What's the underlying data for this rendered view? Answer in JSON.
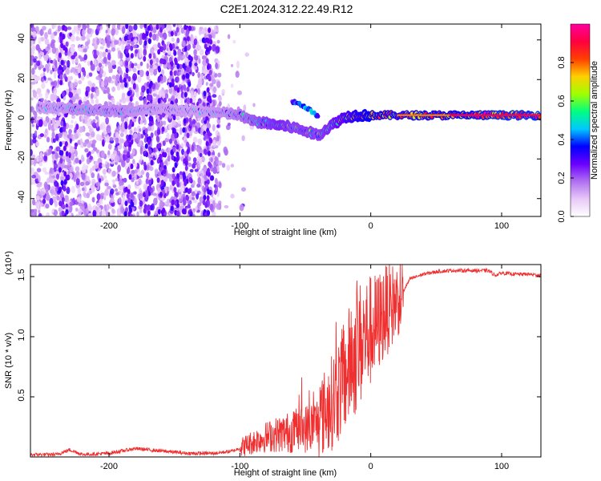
{
  "title": "C2E1.2024.312.22.49.R12",
  "chart_data": [
    {
      "type": "heatmap",
      "xlabel": "Height of straight line (km)",
      "ylabel": "Frequency (Hz)",
      "xlim": [
        -260,
        130
      ],
      "ylim": [
        -49,
        48
      ],
      "xticks": [
        -200,
        -100,
        0,
        100
      ],
      "yticks": [
        -40,
        -20,
        0,
        20,
        40
      ],
      "colorbar": {
        "label": "Normalized spectral amplitude",
        "range": [
          0,
          1
        ],
        "ticks": [
          0,
          0.2,
          0.4,
          0.6,
          0.8
        ],
        "tick_labels": [
          "0.0",
          "0.2",
          "0.4",
          "0.6",
          "0.8"
        ],
        "colors": [
          "#ffffff",
          "#e8c8f8",
          "#b070f0",
          "#6a00ff",
          "#0000ff",
          "#00c8ff",
          "#00ff80",
          "#a0ff00",
          "#ffd000",
          "#ff4000",
          "#ff0040",
          "#ff00a0"
        ]
      },
      "ridge": {
        "x": [
          -250,
          -220,
          -190,
          -160,
          -130,
          -110,
          -100,
          -90,
          -80,
          -70,
          -60,
          -50,
          -40,
          -30,
          -20,
          -10,
          0,
          20,
          60,
          100,
          130
        ],
        "freq": [
          6,
          5,
          4,
          5,
          4,
          3,
          2,
          -1,
          -2,
          -3,
          -4,
          -6,
          -8,
          -3,
          1,
          2,
          2,
          2,
          2,
          2,
          2
        ],
        "amplitude": [
          0.3,
          0.35,
          0.35,
          0.3,
          0.3,
          0.35,
          0.4,
          0.45,
          0.5,
          0.55,
          0.5,
          0.5,
          0.5,
          0.55,
          0.65,
          0.75,
          0.8,
          0.75,
          0.8,
          0.85,
          0.85
        ]
      },
      "branch": {
        "x": [
          -60,
          -55,
          -50,
          -45,
          -40
        ],
        "freq": [
          9,
          8,
          6,
          4,
          1
        ],
        "amplitude": [
          0.3,
          0.35,
          0.45,
          0.4,
          0.35
        ]
      },
      "noise_band_x": [
        -260,
        -115
      ]
    },
    {
      "type": "line",
      "xlabel": "Height of straight line (km)",
      "ylabel": "SNR (10 * v/v)",
      "yscale_label": "(x10⁴)",
      "xlim": [
        -260,
        130
      ],
      "ylim": [
        0,
        1.6
      ],
      "xticks": [
        -200,
        -100,
        0,
        100
      ],
      "yticks": [
        0.5,
        1.0,
        1.5
      ],
      "ytick_labels": [
        "0.5",
        "1.0",
        "1.5"
      ],
      "color": "#f03030",
      "series": [
        {
          "x": [
            -260,
            -240,
            -230,
            -220,
            -200,
            -180,
            -160,
            -140,
            -120,
            -105,
            -95,
            -85,
            -75,
            -65,
            -55,
            -45,
            -40,
            -35,
            -30,
            -25,
            -20,
            -15,
            -10,
            -5,
            0,
            5,
            10,
            15,
            20,
            25,
            30,
            40,
            50,
            60,
            70,
            80,
            90,
            95,
            100,
            110,
            120,
            130
          ],
          "y": [
            0.02,
            0.02,
            0.06,
            0.02,
            0.03,
            0.07,
            0.05,
            0.03,
            0.03,
            0.05,
            0.1,
            0.15,
            0.18,
            0.2,
            0.22,
            0.25,
            0.3,
            0.38,
            0.45,
            0.55,
            0.65,
            0.8,
            0.9,
            1.0,
            1.05,
            1.1,
            1.2,
            1.25,
            1.3,
            1.38,
            1.48,
            1.52,
            1.54,
            1.55,
            1.55,
            1.55,
            1.55,
            1.51,
            1.53,
            1.52,
            1.52,
            1.51
          ]
        }
      ]
    }
  ]
}
